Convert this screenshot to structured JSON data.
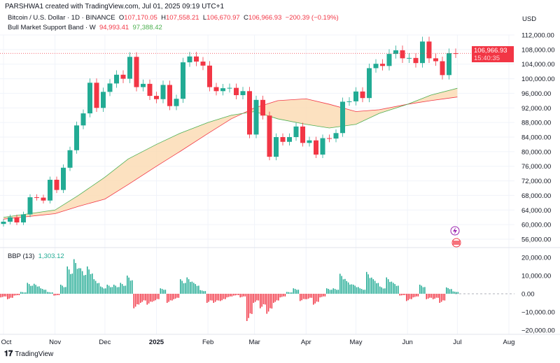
{
  "header": {
    "attribution": "PARSHWA1 created with TradingView.com, Jul 01, 2025 09:19 UTC+1"
  },
  "legend": {
    "symbol": "Bitcoin / U.S. Dollar · 1D · BINANCE",
    "o_label": "O",
    "o": "107,170.05",
    "h_label": "H",
    "h": "107,558.21",
    "l_label": "L",
    "l": "106,670.97",
    "c_label": "C",
    "c": "106,966.93",
    "change": "−200.39 (−0.19%)",
    "band_name": "Bull Market Support Band · W",
    "band_sma": "94,993.41",
    "band_ema": "97,388.42",
    "bbp_name": "BBP (13)",
    "bbp_value": "1,303.12"
  },
  "price_axis": {
    "currency": "USD",
    "current_price": "106,966.93",
    "countdown": "15:40:35"
  },
  "branding": {
    "name": "TradingView"
  },
  "colors": {
    "up": "#22ab94",
    "down": "#f23645",
    "band_fill": "#fbd9b0",
    "sma": "#f23645",
    "ema": "#4caf50",
    "event_icon": "#9c27b0"
  },
  "icons": [
    "lightning-event-icon",
    "us-flag-event-icon"
  ],
  "chart_data": [
    {
      "type": "candlestick",
      "title": "Bitcoin / U.S. Dollar · 1D · BINANCE",
      "ylim": [
        54000,
        114000
      ],
      "yticks": [
        "112,000.00",
        "108,000.00",
        "104,000.00",
        "100,000.00",
        "96,000.00",
        "92,000.00",
        "88,000.00",
        "84,000.00",
        "80,000.00",
        "76,000.00",
        "72,000.00",
        "68,000.00",
        "64,000.00",
        "60,000.00",
        "56,000.00"
      ],
      "xticks": [
        [
          "2024-10-01",
          "Oct"
        ],
        [
          "2024-11-01",
          "Nov"
        ],
        [
          "2024-12-01",
          "Dec"
        ],
        [
          "2025-01-01",
          "2025"
        ],
        [
          "2025-02-01",
          "Feb"
        ],
        [
          "2025-03-01",
          "Mar"
        ],
        [
          "2025-04-01",
          "Apr"
        ],
        [
          "2025-05-01",
          "May"
        ],
        [
          "2025-06-01",
          "Jun"
        ],
        [
          "2025-07-01",
          "Jul"
        ],
        [
          "2025-08-01",
          "Aug"
        ]
      ],
      "closes": [
        [
          "2024-10-01",
          60800
        ],
        [
          "2024-10-05",
          62000
        ],
        [
          "2024-10-09",
          60600
        ],
        [
          "2024-10-13",
          62800
        ],
        [
          "2024-10-17",
          67500
        ],
        [
          "2024-10-21",
          67400
        ],
        [
          "2024-10-25",
          66600
        ],
        [
          "2024-10-29",
          72300
        ],
        [
          "2024-11-02",
          69500
        ],
        [
          "2024-11-06",
          75600
        ],
        [
          "2024-11-10",
          80400
        ],
        [
          "2024-11-14",
          87200
        ],
        [
          "2024-11-18",
          90500
        ],
        [
          "2024-11-22",
          98900
        ],
        [
          "2024-11-26",
          92000
        ],
        [
          "2024-11-30",
          96400
        ],
        [
          "2024-12-04",
          98700
        ],
        [
          "2024-12-08",
          101100
        ],
        [
          "2024-12-12",
          100000
        ],
        [
          "2024-12-16",
          106000
        ],
        [
          "2024-12-20",
          97700
        ],
        [
          "2024-12-24",
          98600
        ],
        [
          "2024-12-28",
          95300
        ],
        [
          "2025-01-01",
          94400
        ],
        [
          "2025-01-05",
          98300
        ],
        [
          "2025-01-09",
          92500
        ],
        [
          "2025-01-13",
          94500
        ],
        [
          "2025-01-17",
          104500
        ],
        [
          "2025-01-21",
          106100
        ],
        [
          "2025-01-25",
          104700
        ],
        [
          "2025-01-29",
          103600
        ],
        [
          "2025-02-02",
          97700
        ],
        [
          "2025-02-06",
          96600
        ],
        [
          "2025-02-10",
          97400
        ],
        [
          "2025-02-14",
          97500
        ],
        [
          "2025-02-18",
          95500
        ],
        [
          "2025-02-22",
          96600
        ],
        [
          "2025-02-26",
          84700
        ],
        [
          "2025-03-02",
          94200
        ],
        [
          "2025-03-06",
          89900
        ],
        [
          "2025-03-10",
          78600
        ],
        [
          "2025-03-14",
          84000
        ],
        [
          "2025-03-18",
          82700
        ],
        [
          "2025-03-22",
          84000
        ],
        [
          "2025-03-26",
          86900
        ],
        [
          "2025-03-30",
          82400
        ],
        [
          "2025-04-03",
          83100
        ],
        [
          "2025-04-07",
          79200
        ],
        [
          "2025-04-11",
          83700
        ],
        [
          "2025-04-15",
          83600
        ],
        [
          "2025-04-19",
          85100
        ],
        [
          "2025-04-23",
          93700
        ],
        [
          "2025-04-27",
          93800
        ],
        [
          "2025-05-01",
          96500
        ],
        [
          "2025-05-05",
          94700
        ],
        [
          "2025-05-09",
          102900
        ],
        [
          "2025-05-13",
          104100
        ],
        [
          "2025-05-17",
          103500
        ],
        [
          "2025-05-21",
          106800
        ],
        [
          "2025-05-25",
          107800
        ],
        [
          "2025-05-29",
          105600
        ],
        [
          "2025-06-02",
          105700
        ],
        [
          "2025-06-06",
          104300
        ],
        [
          "2025-06-10",
          110200
        ],
        [
          "2025-06-14",
          105600
        ],
        [
          "2025-06-18",
          104800
        ],
        [
          "2025-06-22",
          101000
        ],
        [
          "2025-06-26",
          107000
        ],
        [
          "2025-06-30",
          106967
        ]
      ],
      "current_price": 106966.93,
      "bull_market_support_band": {
        "sma_20w": [
          [
            "2024-10-01",
            61500
          ],
          [
            "2024-11-01",
            63000
          ],
          [
            "2024-11-15",
            65000
          ],
          [
            "2024-12-01",
            67000
          ],
          [
            "2024-12-15",
            71000
          ],
          [
            "2025-01-01",
            76000
          ],
          [
            "2025-01-15",
            80000
          ],
          [
            "2025-02-01",
            85000
          ],
          [
            "2025-02-15",
            89000
          ],
          [
            "2025-03-01",
            92000
          ],
          [
            "2025-03-15",
            94000
          ],
          [
            "2025-04-01",
            94500
          ],
          [
            "2025-04-15",
            93000
          ],
          [
            "2025-05-01",
            91000
          ],
          [
            "2025-05-15",
            91500
          ],
          [
            "2025-06-01",
            93000
          ],
          [
            "2025-06-15",
            94000
          ],
          [
            "2025-07-01",
            94993
          ]
        ],
        "ema_21w": [
          [
            "2024-10-01",
            62000
          ],
          [
            "2024-11-01",
            64000
          ],
          [
            "2024-11-15",
            68000
          ],
          [
            "2024-12-01",
            73000
          ],
          [
            "2024-12-15",
            78000
          ],
          [
            "2025-01-01",
            82000
          ],
          [
            "2025-01-15",
            85000
          ],
          [
            "2025-02-01",
            88000
          ],
          [
            "2025-02-15",
            90000
          ],
          [
            "2025-03-01",
            91000
          ],
          [
            "2025-03-15",
            89000
          ],
          [
            "2025-04-01",
            87500
          ],
          [
            "2025-04-15",
            86500
          ],
          [
            "2025-05-01",
            87500
          ],
          [
            "2025-05-15",
            90500
          ],
          [
            "2025-06-01",
            93000
          ],
          [
            "2025-06-15",
            95500
          ],
          [
            "2025-07-01",
            97388
          ]
        ]
      }
    },
    {
      "type": "bar",
      "title": "BBP (13)",
      "ylim": [
        -24000,
        24000
      ],
      "yticks": [
        "20,000.00",
        "10,000.00",
        "0.00",
        "−10,000.00",
        "−20,000.00"
      ],
      "values": [
        [
          "2024-10-01",
          -2000
        ],
        [
          "2024-10-05",
          -3000
        ],
        [
          "2024-10-09",
          -1000
        ],
        [
          "2024-10-13",
          1000
        ],
        [
          "2024-10-17",
          6000
        ],
        [
          "2024-10-21",
          5500
        ],
        [
          "2024-10-25",
          3000
        ],
        [
          "2024-10-29",
          1000
        ],
        [
          "2024-11-02",
          -1000
        ],
        [
          "2024-11-06",
          5000
        ],
        [
          "2024-11-10",
          15000
        ],
        [
          "2024-11-14",
          19000
        ],
        [
          "2024-11-18",
          14000
        ],
        [
          "2024-11-22",
          15000
        ],
        [
          "2024-11-26",
          8000
        ],
        [
          "2024-11-30",
          4000
        ],
        [
          "2024-12-04",
          5000
        ],
        [
          "2024-12-08",
          5000
        ],
        [
          "2024-12-12",
          6000
        ],
        [
          "2024-12-16",
          10000
        ],
        [
          "2024-12-20",
          -8000
        ],
        [
          "2024-12-24",
          -5000
        ],
        [
          "2024-12-28",
          -6000
        ],
        [
          "2025-01-01",
          -4000
        ],
        [
          "2025-01-05",
          3000
        ],
        [
          "2025-01-09",
          -5000
        ],
        [
          "2025-01-13",
          -3000
        ],
        [
          "2025-01-17",
          8000
        ],
        [
          "2025-01-21",
          9000
        ],
        [
          "2025-01-25",
          6000
        ],
        [
          "2025-01-29",
          2000
        ],
        [
          "2025-02-02",
          -5000
        ],
        [
          "2025-02-06",
          -5000
        ],
        [
          "2025-02-10",
          -4000
        ],
        [
          "2025-02-14",
          -2000
        ],
        [
          "2025-02-18",
          -1000
        ],
        [
          "2025-02-22",
          -2000
        ],
        [
          "2025-02-26",
          -15000
        ],
        [
          "2025-03-02",
          -5000
        ],
        [
          "2025-03-06",
          -8000
        ],
        [
          "2025-03-10",
          -11000
        ],
        [
          "2025-03-14",
          -5000
        ],
        [
          "2025-03-18",
          -2000
        ],
        [
          "2025-03-22",
          1000
        ],
        [
          "2025-03-26",
          3000
        ],
        [
          "2025-03-30",
          -4000
        ],
        [
          "2025-04-03",
          -3000
        ],
        [
          "2025-04-07",
          -6000
        ],
        [
          "2025-04-11",
          -2000
        ],
        [
          "2025-04-15",
          3000
        ],
        [
          "2025-04-19",
          3000
        ],
        [
          "2025-04-23",
          11000
        ],
        [
          "2025-04-27",
          7000
        ],
        [
          "2025-05-01",
          5000
        ],
        [
          "2025-05-05",
          3000
        ],
        [
          "2025-05-09",
          12000
        ],
        [
          "2025-05-13",
          8000
        ],
        [
          "2025-05-17",
          4000
        ],
        [
          "2025-05-21",
          9000
        ],
        [
          "2025-05-25",
          6000
        ],
        [
          "2025-05-29",
          -1000
        ],
        [
          "2025-06-02",
          -4000
        ],
        [
          "2025-06-06",
          -2000
        ],
        [
          "2025-06-10",
          5000
        ],
        [
          "2025-06-14",
          -3000
        ],
        [
          "2025-06-18",
          -3000
        ],
        [
          "2025-06-22",
          -5000
        ],
        [
          "2025-06-26",
          3500
        ],
        [
          "2025-06-30",
          1303.12
        ]
      ]
    }
  ]
}
